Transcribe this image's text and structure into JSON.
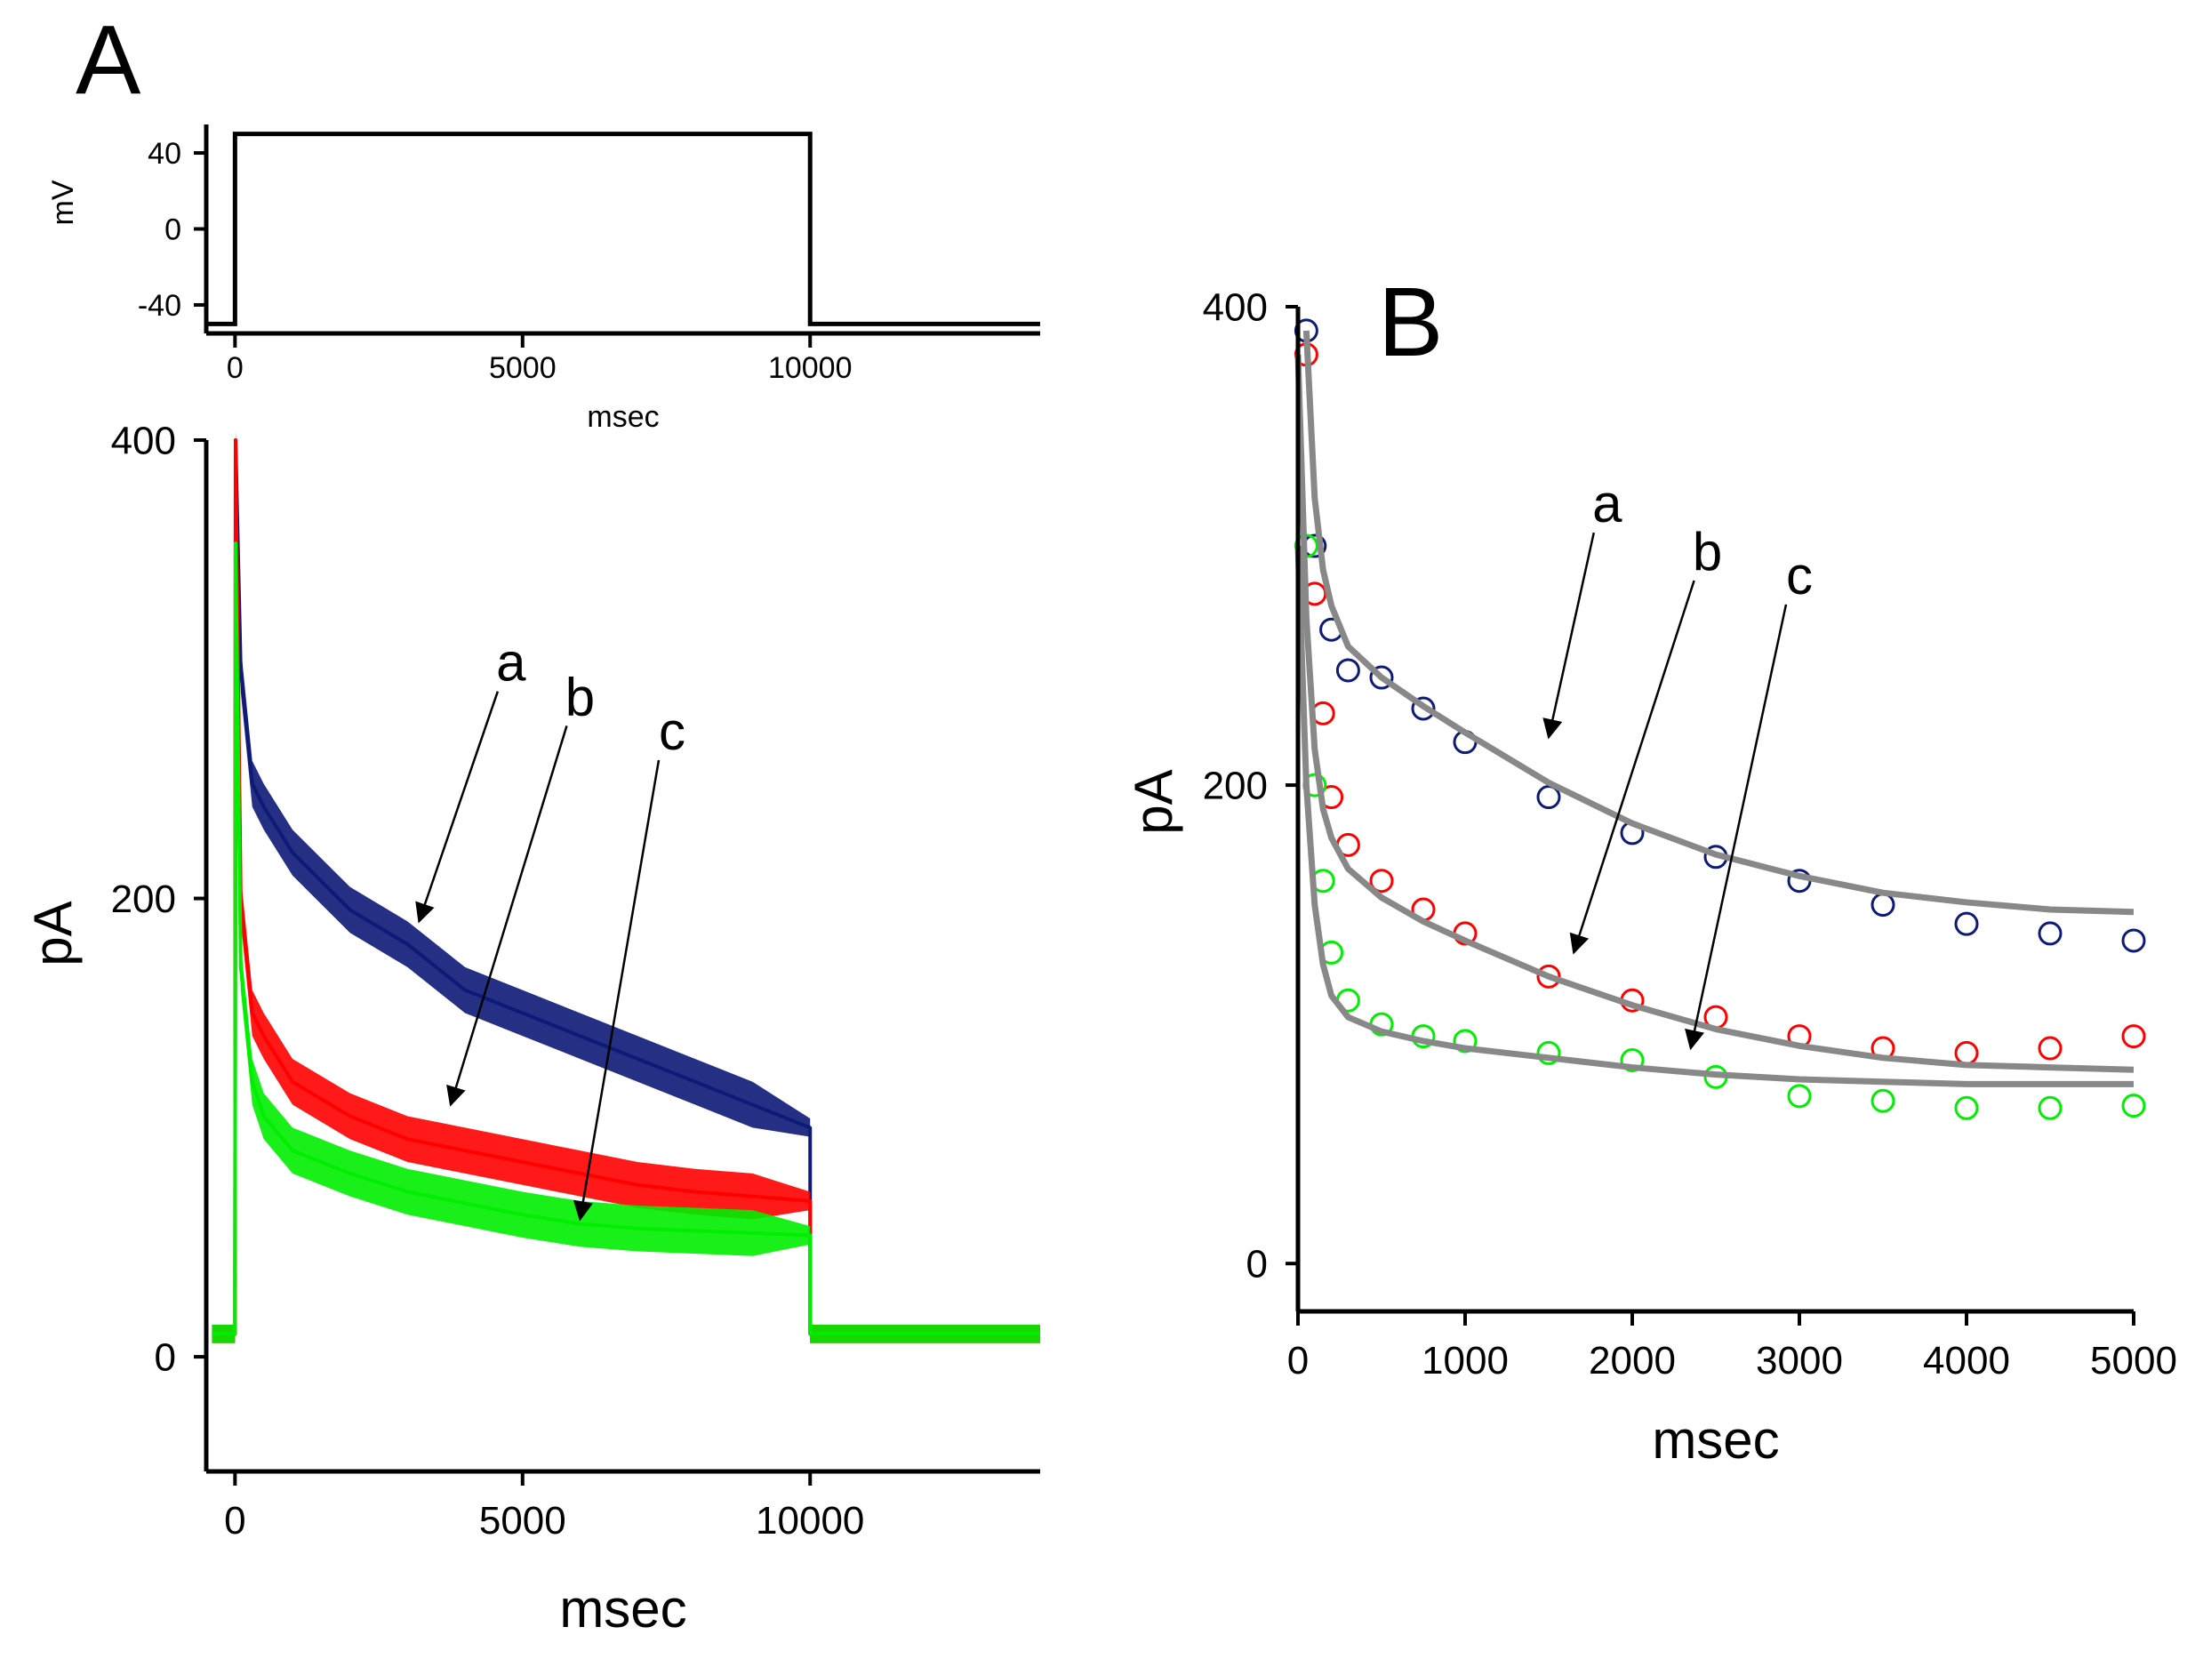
{
  "panels": {
    "a_label": "A",
    "b_label": "B"
  },
  "colors": {
    "a": "#0d1a78",
    "b": "#ff0000",
    "c": "#00ee00",
    "fit": "#888888",
    "axis": "#000000"
  },
  "chart_data": [
    {
      "id": "voltage",
      "type": "line",
      "title": "",
      "xlabel": "msec",
      "ylabel": "mV",
      "xlim": [
        -500,
        14000
      ],
      "ylim": [
        -55,
        55
      ],
      "xticks": [
        0,
        5000,
        10000
      ],
      "xtick_labels": [
        "0",
        "5000",
        "10000"
      ],
      "yticks": [
        -40,
        0,
        40
      ],
      "ytick_labels": [
        "-40",
        "0",
        "40"
      ],
      "series": [
        {
          "name": "step",
          "x": [
            -500,
            0,
            0,
            10000,
            10000,
            14000
          ],
          "y": [
            -50,
            -50,
            50,
            50,
            -50,
            -50
          ]
        }
      ]
    },
    {
      "id": "currentA",
      "type": "line",
      "title": "",
      "xlabel": "msec",
      "ylabel": "pA",
      "xlim": [
        -500,
        14000
      ],
      "ylim": [
        -50,
        400
      ],
      "xticks": [
        0,
        5000,
        10000
      ],
      "xtick_labels": [
        "0",
        "5000",
        "10000"
      ],
      "yticks": [
        0,
        200,
        400
      ],
      "ytick_labels": [
        "0",
        "200",
        "400"
      ],
      "series": [
        {
          "name": "a",
          "x": [
            -400,
            0,
            10,
            100,
            300,
            500,
            1000,
            2000,
            3000,
            4000,
            5000,
            6000,
            7000,
            8000,
            9000,
            10000,
            10001,
            12000,
            14000
          ],
          "y": [
            10,
            10,
            400,
            300,
            250,
            240,
            220,
            195,
            180,
            160,
            150,
            140,
            130,
            120,
            110,
            100,
            10,
            10,
            10
          ]
        },
        {
          "name": "b",
          "x": [
            -400,
            0,
            10,
            100,
            300,
            500,
            1000,
            2000,
            3000,
            4000,
            5000,
            6000,
            7000,
            8000,
            9000,
            10000,
            10001,
            12000,
            14000
          ],
          "y": [
            10,
            10,
            400,
            200,
            150,
            140,
            120,
            105,
            95,
            90,
            85,
            80,
            75,
            72,
            70,
            68,
            10,
            10,
            10
          ]
        },
        {
          "name": "c",
          "x": [
            -400,
            0,
            10,
            100,
            300,
            500,
            1000,
            2000,
            3000,
            4000,
            5000,
            6000,
            7000,
            8000,
            9000,
            10000,
            10001,
            12000,
            14000
          ],
          "y": [
            10,
            10,
            355,
            170,
            120,
            105,
            90,
            80,
            72,
            67,
            62,
            58,
            56,
            55,
            54,
            53,
            10,
            10,
            10
          ]
        }
      ],
      "annotations": [
        {
          "text": "a",
          "text_x": 4800,
          "text_y": 295,
          "arrow_x": 3200,
          "arrow_y": 190
        },
        {
          "text": "b",
          "text_x": 6000,
          "text_y": 280,
          "arrow_x": 3750,
          "arrow_y": 110
        },
        {
          "text": "c",
          "text_x": 7600,
          "text_y": 265,
          "arrow_x": 6000,
          "arrow_y": 60
        }
      ]
    },
    {
      "id": "currentB",
      "type": "scatter",
      "title": "",
      "xlabel": "msec",
      "ylabel": "pA",
      "xlim": [
        0,
        5000
      ],
      "ylim": [
        -20,
        400
      ],
      "xticks": [
        0,
        1000,
        2000,
        3000,
        4000,
        5000
      ],
      "xtick_labels": [
        "0",
        "1000",
        "2000",
        "3000",
        "4000",
        "5000"
      ],
      "yticks": [
        0,
        200,
        400
      ],
      "ytick_labels": [
        "0",
        "200",
        "400"
      ],
      "series": [
        {
          "name": "a",
          "x": [
            50,
            100,
            200,
            300,
            500,
            750,
            1000,
            1500,
            2000,
            2500,
            3000,
            3500,
            4000,
            4500,
            5000
          ],
          "y": [
            390,
            300,
            265,
            248,
            245,
            232,
            218,
            195,
            180,
            170,
            160,
            150,
            142,
            138,
            135
          ]
        },
        {
          "name": "b",
          "x": [
            50,
            100,
            150,
            200,
            300,
            500,
            750,
            1000,
            1500,
            2000,
            2500,
            3000,
            3500,
            4000,
            4500,
            5000
          ],
          "y": [
            380,
            280,
            230,
            195,
            175,
            160,
            148,
            138,
            120,
            110,
            103,
            95,
            90,
            88,
            90,
            95
          ]
        },
        {
          "name": "c",
          "x": [
            50,
            100,
            150,
            200,
            300,
            500,
            750,
            1000,
            1500,
            2000,
            2500,
            3000,
            3500,
            4000,
            4500,
            5000
          ],
          "y": [
            300,
            200,
            160,
            130,
            110,
            100,
            95,
            93,
            88,
            85,
            78,
            70,
            68,
            65,
            65,
            66
          ]
        },
        {
          "name": "fit_a",
          "x": [
            50,
            100,
            150,
            200,
            300,
            500,
            750,
            1000,
            1500,
            2000,
            2500,
            3000,
            3500,
            4000,
            4500,
            5000
          ],
          "y": [
            390,
            320,
            290,
            275,
            258,
            245,
            233,
            222,
            201,
            184,
            171,
            162,
            155,
            151,
            148,
            147
          ]
        },
        {
          "name": "fit_b",
          "x": [
            0,
            50,
            100,
            150,
            200,
            300,
            500,
            750,
            1000,
            1500,
            2000,
            2500,
            3000,
            3500,
            4000,
            4500,
            5000
          ],
          "y": [
            380,
            270,
            215,
            190,
            178,
            165,
            153,
            143,
            135,
            120,
            108,
            98,
            91,
            86,
            83,
            82,
            81
          ]
        },
        {
          "name": "fit_c",
          "x": [
            0,
            50,
            100,
            150,
            200,
            300,
            500,
            750,
            1000,
            1500,
            2000,
            2500,
            3000,
            3500,
            4000,
            4500,
            5000
          ],
          "y": [
            300,
            200,
            150,
            125,
            112,
            103,
            97,
            93,
            90,
            86,
            82,
            79,
            77,
            76,
            75,
            75,
            75
          ]
        }
      ],
      "annotations": [
        {
          "text": "a",
          "text_x": 1850,
          "text_y": 310,
          "arrow_x": 1500,
          "arrow_y": 220
        },
        {
          "text": "b",
          "text_x": 2450,
          "text_y": 290,
          "arrow_x": 1650,
          "arrow_y": 130
        },
        {
          "text": "c",
          "text_x": 3000,
          "text_y": 280,
          "arrow_x": 2350,
          "arrow_y": 90
        }
      ]
    }
  ]
}
